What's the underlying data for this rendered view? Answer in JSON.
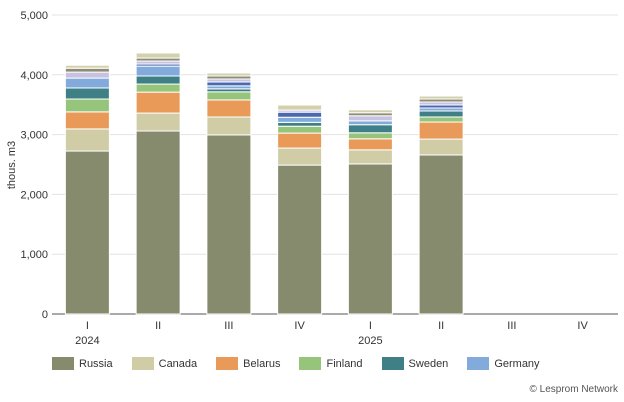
{
  "chart_data": {
    "type": "bar",
    "stacked": true,
    "ylabel": "thous. m3",
    "ylim": [
      0,
      5000
    ],
    "yticks": [
      "0",
      "1,000",
      "2,000",
      "3,000",
      "4,000",
      "5,000"
    ],
    "ytick_values": [
      0,
      1000,
      2000,
      3000,
      4000,
      5000
    ],
    "categories": [
      "I",
      "II",
      "III",
      "IV",
      "I",
      "II",
      "III",
      "IV"
    ],
    "year_labels": [
      {
        "label": "2024",
        "category_index": 0
      },
      {
        "label": "2025",
        "category_index": 4
      }
    ],
    "grid": true,
    "legend_position": "bottom",
    "series": [
      {
        "name": "Russia",
        "color": "#878b6e",
        "values": [
          2725,
          3060,
          2995,
          2490,
          2510,
          2660,
          null,
          null
        ]
      },
      {
        "name": "Canada",
        "color": "#cfcca6",
        "values": [
          370,
          300,
          300,
          285,
          235,
          265,
          null,
          null
        ]
      },
      {
        "name": "Belarus",
        "color": "#e99a58",
        "values": [
          285,
          350,
          285,
          250,
          185,
          285,
          null,
          null
        ]
      },
      {
        "name": "Finland",
        "color": "#97c47b",
        "values": [
          215,
          135,
          135,
          115,
          100,
          85,
          null,
          null
        ]
      },
      {
        "name": "Sweden",
        "color": "#3e8086",
        "values": [
          185,
          135,
          50,
          65,
          135,
          100,
          null,
          null
        ]
      },
      {
        "name": "Germany",
        "color": "#82abdb",
        "values": [
          165,
          165,
          50,
          85,
          65,
          50,
          null,
          null
        ]
      },
      {
        "name": null,
        "color": "#4b68b0",
        "values": [
          0,
          35,
          65,
          85,
          0,
          50,
          null,
          null
        ]
      },
      {
        "name": null,
        "color": "#c6c2e0",
        "values": [
          100,
          50,
          50,
          35,
          85,
          50,
          null,
          null
        ]
      },
      {
        "name": null,
        "color": "#8e8c75",
        "values": [
          65,
          50,
          50,
          0,
          50,
          50,
          null,
          null
        ]
      },
      {
        "name": null,
        "color": "#d3d0ad",
        "values": [
          50,
          85,
          50,
          85,
          50,
          50,
          null,
          null
        ]
      }
    ]
  },
  "credit": "© Lesprom Network"
}
